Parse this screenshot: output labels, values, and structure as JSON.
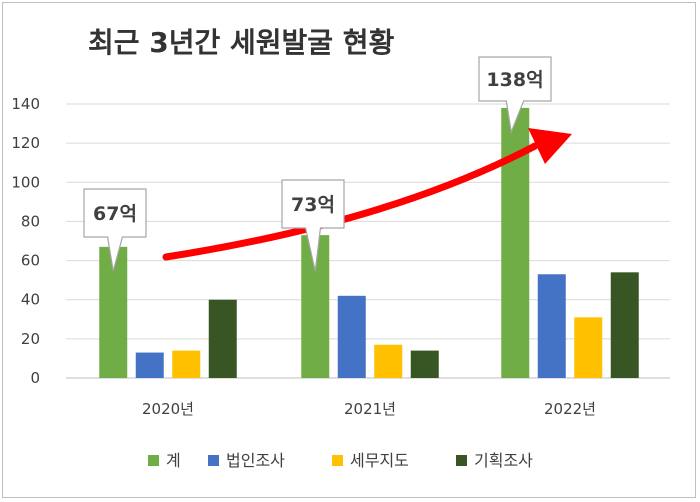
{
  "chart_data": {
    "type": "bar",
    "title": "최근 3년간 세원발굴 현황",
    "categories": [
      "2020년",
      "2021년",
      "2022년"
    ],
    "ylim": [
      0,
      140
    ],
    "yticks": [
      0,
      20,
      40,
      60,
      80,
      100,
      120,
      140
    ],
    "grid": true,
    "legend_position": "bottom",
    "series": [
      {
        "name": "계",
        "color": "#70ad47",
        "values": [
          67,
          73,
          138
        ]
      },
      {
        "name": "법인조사",
        "color": "#4472c4",
        "values": [
          13,
          42,
          53
        ]
      },
      {
        "name": "세무지도",
        "color": "#ffc000",
        "values": [
          14,
          17,
          31
        ]
      },
      {
        "name": "기획조사",
        "color": "#375623",
        "values": [
          40,
          14,
          54
        ]
      }
    ],
    "callouts": [
      "67억",
      "73억",
      "138억"
    ],
    "annotation_arrow_color": "#ff0000"
  }
}
